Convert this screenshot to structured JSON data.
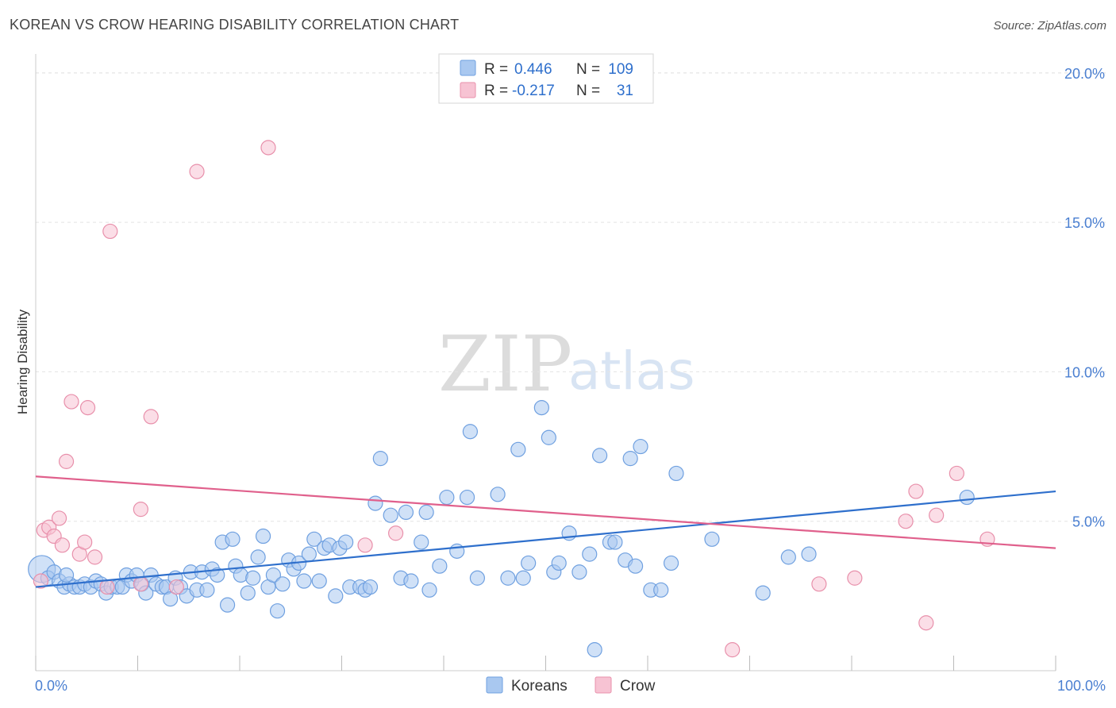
{
  "chart_data": {
    "type": "scatter",
    "title": "KOREAN VS CROW HEARING DISABILITY CORRELATION CHART",
    "source": "Source: ZipAtlas.com",
    "ylabel": "Hearing Disability",
    "xlabel": "",
    "x_tick_labels": [
      "0.0%",
      "100.0%"
    ],
    "y_tick_labels": [
      "5.0%",
      "10.0%",
      "15.0%",
      "20.0%"
    ],
    "y_ticks": [
      5,
      10,
      15,
      20
    ],
    "xlim": [
      0,
      100
    ],
    "ylim": [
      0,
      20.5
    ],
    "grid": true,
    "watermark": {
      "zip": "ZIP",
      "atlas": "atlas"
    },
    "legend_stats": [
      {
        "r_label": "R =",
        "r_value": "0.446",
        "n_label": "N =",
        "n_value": "109"
      },
      {
        "r_label": "R =",
        "r_value": "-0.217",
        "n_label": "N =",
        "n_value": "31"
      }
    ],
    "legend_bottom": [
      "Koreans",
      "Crow"
    ],
    "series": [
      {
        "name": "Koreans",
        "color": "#6fa0e0",
        "fill": "#a9c8f0",
        "trend_color": "#2e6fcc",
        "trend": {
          "x": [
            0,
            100
          ],
          "y": [
            2.8,
            6.0
          ]
        },
        "points": [
          [
            0.6,
            3.4
          ],
          [
            1.2,
            3.1
          ],
          [
            1.8,
            3.3
          ],
          [
            2.3,
            3.0
          ],
          [
            2.8,
            2.8
          ],
          [
            3.3,
            2.9
          ],
          [
            3.8,
            2.8
          ],
          [
            4.3,
            2.8
          ],
          [
            4.8,
            2.9
          ],
          [
            5.4,
            2.8
          ],
          [
            5.9,
            3.0
          ],
          [
            6.4,
            2.9
          ],
          [
            6.9,
            2.6
          ],
          [
            7.4,
            2.8
          ],
          [
            8.0,
            2.8
          ],
          [
            8.5,
            2.8
          ],
          [
            8.9,
            3.2
          ],
          [
            9.4,
            3.0
          ],
          [
            9.9,
            3.2
          ],
          [
            10.4,
            2.9
          ],
          [
            10.8,
            2.6
          ],
          [
            11.3,
            3.2
          ],
          [
            11.8,
            2.9
          ],
          [
            12.4,
            2.8
          ],
          [
            12.8,
            2.8
          ],
          [
            13.2,
            2.4
          ],
          [
            13.7,
            3.1
          ],
          [
            14.2,
            2.8
          ],
          [
            14.8,
            2.5
          ],
          [
            15.2,
            3.3
          ],
          [
            15.8,
            2.7
          ],
          [
            16.3,
            3.3
          ],
          [
            16.8,
            2.7
          ],
          [
            17.3,
            3.4
          ],
          [
            17.8,
            3.2
          ],
          [
            18.3,
            4.3
          ],
          [
            18.8,
            2.2
          ],
          [
            19.3,
            4.4
          ],
          [
            19.6,
            3.5
          ],
          [
            20.1,
            3.2
          ],
          [
            20.8,
            2.6
          ],
          [
            21.3,
            3.1
          ],
          [
            21.8,
            3.8
          ],
          [
            22.3,
            4.5
          ],
          [
            22.8,
            2.8
          ],
          [
            23.3,
            3.2
          ],
          [
            23.7,
            2.0
          ],
          [
            24.2,
            2.9
          ],
          [
            24.8,
            3.7
          ],
          [
            25.3,
            3.4
          ],
          [
            25.8,
            3.6
          ],
          [
            26.3,
            3.0
          ],
          [
            26.8,
            3.9
          ],
          [
            27.3,
            4.4
          ],
          [
            27.8,
            3.0
          ],
          [
            28.3,
            4.1
          ],
          [
            28.8,
            4.2
          ],
          [
            29.4,
            2.5
          ],
          [
            29.8,
            4.1
          ],
          [
            30.4,
            4.3
          ],
          [
            30.8,
            2.8
          ],
          [
            31.8,
            2.8
          ],
          [
            32.3,
            2.7
          ],
          [
            32.8,
            2.8
          ],
          [
            33.3,
            5.6
          ],
          [
            33.8,
            7.1
          ],
          [
            34.8,
            5.2
          ],
          [
            35.8,
            3.1
          ],
          [
            36.3,
            5.3
          ],
          [
            36.8,
            3.0
          ],
          [
            37.8,
            4.3
          ],
          [
            38.3,
            5.3
          ],
          [
            38.6,
            2.7
          ],
          [
            39.6,
            3.5
          ],
          [
            40.3,
            5.8
          ],
          [
            41.3,
            4.0
          ],
          [
            42.3,
            5.8
          ],
          [
            42.6,
            8.0
          ],
          [
            43.3,
            3.1
          ],
          [
            45.3,
            5.9
          ],
          [
            46.3,
            3.1
          ],
          [
            47.3,
            7.4
          ],
          [
            47.8,
            3.1
          ],
          [
            48.3,
            3.6
          ],
          [
            49.6,
            8.8
          ],
          [
            50.3,
            7.8
          ],
          [
            50.8,
            3.3
          ],
          [
            51.3,
            3.6
          ],
          [
            52.3,
            4.6
          ],
          [
            53.3,
            3.3
          ],
          [
            54.3,
            3.9
          ],
          [
            54.8,
            0.7
          ],
          [
            55.3,
            7.2
          ],
          [
            56.3,
            4.3
          ],
          [
            56.8,
            4.3
          ],
          [
            57.8,
            3.7
          ],
          [
            58.3,
            7.1
          ],
          [
            58.8,
            3.5
          ],
          [
            59.3,
            7.5
          ],
          [
            60.3,
            2.7
          ],
          [
            61.3,
            2.7
          ],
          [
            62.3,
            3.6
          ],
          [
            62.8,
            6.6
          ],
          [
            66.3,
            4.4
          ],
          [
            71.3,
            2.6
          ],
          [
            73.8,
            3.8
          ],
          [
            75.8,
            3.9
          ],
          [
            91.3,
            5.8
          ],
          [
            3.0,
            3.2
          ]
        ]
      },
      {
        "name": "Crow",
        "color": "#e890ab",
        "fill": "#f7c3d3",
        "trend_color": "#e0608c",
        "trend": {
          "x": [
            0,
            100
          ],
          "y": [
            6.5,
            4.1
          ]
        },
        "points": [
          [
            0.5,
            3.0
          ],
          [
            0.8,
            4.7
          ],
          [
            1.3,
            4.8
          ],
          [
            1.8,
            4.5
          ],
          [
            2.3,
            5.1
          ],
          [
            2.6,
            4.2
          ],
          [
            3.0,
            7.0
          ],
          [
            3.5,
            9.0
          ],
          [
            4.3,
            3.9
          ],
          [
            4.8,
            4.3
          ],
          [
            5.1,
            8.8
          ],
          [
            5.8,
            3.8
          ],
          [
            7.0,
            2.8
          ],
          [
            7.3,
            14.7
          ],
          [
            10.3,
            2.9
          ],
          [
            10.3,
            5.4
          ],
          [
            11.3,
            8.5
          ],
          [
            13.8,
            2.8
          ],
          [
            15.8,
            16.7
          ],
          [
            22.8,
            17.5
          ],
          [
            32.3,
            4.2
          ],
          [
            35.3,
            4.6
          ],
          [
            68.3,
            0.7
          ],
          [
            76.8,
            2.9
          ],
          [
            80.3,
            3.1
          ],
          [
            85.3,
            5.0
          ],
          [
            86.3,
            6.0
          ],
          [
            87.3,
            1.6
          ],
          [
            88.3,
            5.2
          ],
          [
            90.3,
            6.6
          ],
          [
            93.3,
            4.4
          ]
        ]
      }
    ]
  }
}
